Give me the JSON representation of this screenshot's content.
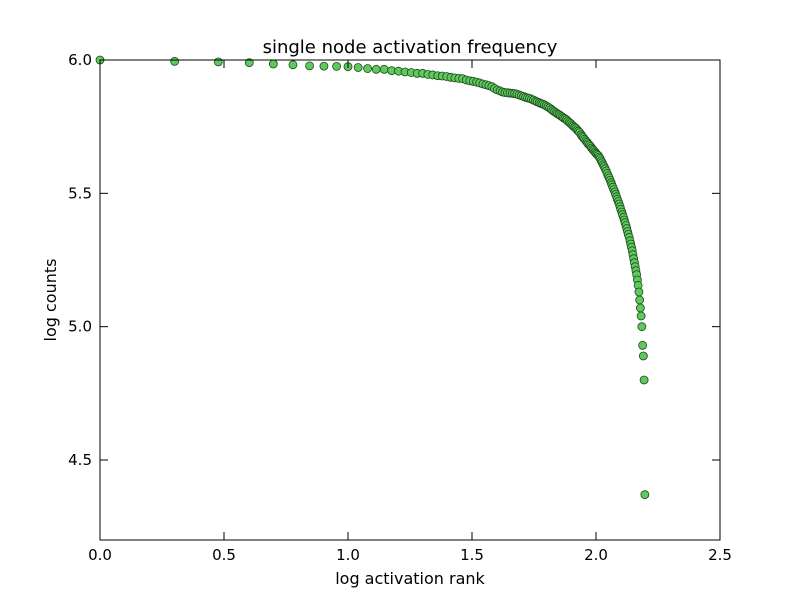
{
  "chart_data": {
    "type": "scatter",
    "title": "single node activation frequency",
    "xlabel": "log activation rank",
    "ylabel": "log counts",
    "xlim": [
      0.0,
      2.5
    ],
    "ylim": [
      4.2,
      6.0
    ],
    "xticks": [
      {
        "value": 0.0,
        "label": "0.0"
      },
      {
        "value": 0.5,
        "label": "0.5"
      },
      {
        "value": 1.0,
        "label": "1.0"
      },
      {
        "value": 1.5,
        "label": "1.5"
      },
      {
        "value": 2.0,
        "label": "2.0"
      },
      {
        "value": 2.5,
        "label": "2.5"
      }
    ],
    "yticks": [
      {
        "value": 4.5,
        "label": "4.5"
      },
      {
        "value": 5.0,
        "label": "5.0"
      },
      {
        "value": 5.5,
        "label": "5.5"
      },
      {
        "value": 6.0,
        "label": "6.0"
      }
    ],
    "grid": false,
    "marker_color": "#5fc95f",
    "marker_edge_color": "#1a4a1a",
    "points": [
      [
        0.0,
        6.0
      ],
      [
        0.301,
        5.995
      ],
      [
        0.477,
        5.993
      ],
      [
        0.602,
        5.99
      ],
      [
        0.699,
        5.985
      ],
      [
        0.778,
        5.982
      ],
      [
        0.845,
        5.978
      ],
      [
        0.903,
        5.977
      ],
      [
        0.954,
        5.976
      ],
      [
        1.0,
        5.975
      ],
      [
        1.041,
        5.972
      ],
      [
        1.079,
        5.968
      ],
      [
        1.114,
        5.965
      ],
      [
        1.146,
        5.965
      ],
      [
        1.176,
        5.96
      ],
      [
        1.204,
        5.958
      ],
      [
        1.23,
        5.955
      ],
      [
        1.255,
        5.953
      ],
      [
        1.279,
        5.95
      ],
      [
        1.301,
        5.95
      ],
      [
        1.322,
        5.946
      ],
      [
        1.342,
        5.944
      ],
      [
        1.362,
        5.941
      ],
      [
        1.38,
        5.94
      ],
      [
        1.398,
        5.938
      ],
      [
        1.415,
        5.935
      ],
      [
        1.431,
        5.933
      ],
      [
        1.447,
        5.931
      ],
      [
        1.462,
        5.93
      ],
      [
        1.477,
        5.925
      ],
      [
        1.491,
        5.922
      ],
      [
        1.505,
        5.92
      ],
      [
        1.519,
        5.917
      ],
      [
        1.531,
        5.914
      ],
      [
        1.544,
        5.91
      ],
      [
        1.556,
        5.907
      ],
      [
        1.568,
        5.904
      ],
      [
        1.58,
        5.9
      ],
      [
        1.591,
        5.893
      ],
      [
        1.602,
        5.888
      ],
      [
        1.613,
        5.884
      ],
      [
        1.623,
        5.88
      ],
      [
        1.633,
        5.878
      ],
      [
        1.643,
        5.877
      ],
      [
        1.653,
        5.876
      ],
      [
        1.663,
        5.875
      ],
      [
        1.672,
        5.874
      ],
      [
        1.681,
        5.872
      ],
      [
        1.69,
        5.869
      ],
      [
        1.699,
        5.866
      ],
      [
        1.708,
        5.863
      ],
      [
        1.716,
        5.86
      ],
      [
        1.724,
        5.858
      ],
      [
        1.732,
        5.856
      ],
      [
        1.74,
        5.853
      ],
      [
        1.748,
        5.85
      ],
      [
        1.756,
        5.846
      ],
      [
        1.763,
        5.843
      ],
      [
        1.771,
        5.84
      ],
      [
        1.778,
        5.837
      ],
      [
        1.785,
        5.835
      ],
      [
        1.792,
        5.832
      ],
      [
        1.799,
        5.828
      ],
      [
        1.806,
        5.824
      ],
      [
        1.813,
        5.82
      ],
      [
        1.82,
        5.815
      ],
      [
        1.826,
        5.81
      ],
      [
        1.833,
        5.806
      ],
      [
        1.839,
        5.802
      ],
      [
        1.845,
        5.798
      ],
      [
        1.851,
        5.795
      ],
      [
        1.857,
        5.791
      ],
      [
        1.863,
        5.787
      ],
      [
        1.869,
        5.783
      ],
      [
        1.875,
        5.78
      ],
      [
        1.881,
        5.776
      ],
      [
        1.886,
        5.771
      ],
      [
        1.892,
        5.766
      ],
      [
        1.898,
        5.762
      ],
      [
        1.903,
        5.757
      ],
      [
        1.908,
        5.752
      ],
      [
        1.914,
        5.748
      ],
      [
        1.919,
        5.744
      ],
      [
        1.924,
        5.738
      ],
      [
        1.929,
        5.733
      ],
      [
        1.934,
        5.728
      ],
      [
        1.94,
        5.72
      ],
      [
        1.944,
        5.714
      ],
      [
        1.949,
        5.709
      ],
      [
        1.954,
        5.703
      ],
      [
        1.959,
        5.697
      ],
      [
        1.964,
        5.692
      ],
      [
        1.968,
        5.686
      ],
      [
        1.973,
        5.682
      ],
      [
        1.978,
        5.676
      ],
      [
        1.982,
        5.67
      ],
      [
        1.987,
        5.665
      ],
      [
        1.991,
        5.66
      ],
      [
        1.996,
        5.655
      ],
      [
        2.0,
        5.65
      ],
      [
        2.004,
        5.646
      ],
      [
        2.009,
        5.642
      ],
      [
        2.013,
        5.636
      ],
      [
        2.017,
        5.63
      ],
      [
        2.021,
        5.622
      ],
      [
        2.025,
        5.615
      ],
      [
        2.029,
        5.607
      ],
      [
        2.033,
        5.6
      ],
      [
        2.037,
        5.592
      ],
      [
        2.041,
        5.584
      ],
      [
        2.045,
        5.575
      ],
      [
        2.049,
        5.566
      ],
      [
        2.053,
        5.558
      ],
      [
        2.057,
        5.549
      ],
      [
        2.061,
        5.54
      ],
      [
        2.064,
        5.532
      ],
      [
        2.068,
        5.523
      ],
      [
        2.072,
        5.514
      ],
      [
        2.076,
        5.505
      ],
      [
        2.079,
        5.496
      ],
      [
        2.083,
        5.487
      ],
      [
        2.086,
        5.478
      ],
      [
        2.09,
        5.469
      ],
      [
        2.093,
        5.46
      ],
      [
        2.097,
        5.45
      ],
      [
        2.1,
        5.44
      ],
      [
        2.104,
        5.43
      ],
      [
        2.107,
        5.42
      ],
      [
        2.111,
        5.41
      ],
      [
        2.114,
        5.4
      ],
      [
        2.117,
        5.39
      ],
      [
        2.121,
        5.379
      ],
      [
        2.124,
        5.368
      ],
      [
        2.127,
        5.357
      ],
      [
        2.13,
        5.346
      ],
      [
        2.134,
        5.335
      ],
      [
        2.137,
        5.322
      ],
      [
        2.14,
        5.31
      ],
      [
        2.143,
        5.298
      ],
      [
        2.146,
        5.285
      ],
      [
        2.149,
        5.27
      ],
      [
        2.152,
        5.255
      ],
      [
        2.155,
        5.24
      ],
      [
        2.158,
        5.225
      ],
      [
        2.161,
        5.21
      ],
      [
        2.164,
        5.195
      ],
      [
        2.167,
        5.175
      ],
      [
        2.17,
        5.155
      ],
      [
        2.173,
        5.13
      ],
      [
        2.176,
        5.1
      ],
      [
        2.179,
        5.07
      ],
      [
        2.182,
        5.04
      ],
      [
        2.185,
        5.0
      ],
      [
        2.188,
        4.93
      ],
      [
        2.191,
        4.89
      ],
      [
        2.194,
        4.8
      ],
      [
        2.197,
        4.37
      ]
    ]
  }
}
